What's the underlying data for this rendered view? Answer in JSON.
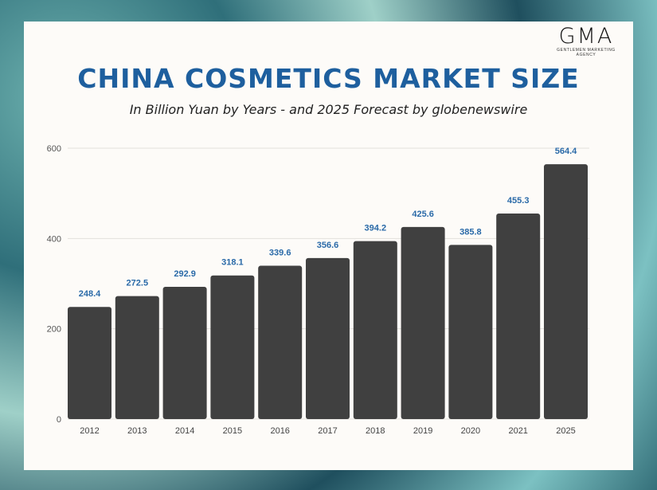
{
  "logo": {
    "text": "GMA",
    "tagline": "GENTLEMEN MARKETING AGENCY",
    "accent": "#d9262c"
  },
  "chart_data": {
    "type": "bar",
    "title": "CHINA COSMETICS MARKET SIZE",
    "subtitle": "In Billion Yuan  by Years - and 2025 Forecast by globenewswire",
    "categories": [
      "2012",
      "2013",
      "2014",
      "2015",
      "2016",
      "2017",
      "2018",
      "2019",
      "2020",
      "2021",
      "2025"
    ],
    "values": [
      248.4,
      272.5,
      292.9,
      318.1,
      339.6,
      356.6,
      394.2,
      425.6,
      385.8,
      455.3,
      564.4
    ],
    "data_labels": [
      "248.4",
      "272.5",
      "292.9",
      "318.1",
      "339.6",
      "356.6",
      "394.2",
      "425.6",
      "385.8",
      "455.3",
      "564.4"
    ],
    "yticks": [
      "0",
      "200",
      "400",
      "600"
    ],
    "ylim": [
      0,
      600
    ],
    "grid": true,
    "bar_color": "#404040",
    "label_color": "#2a6aa8",
    "title_color": "#1e5f9e"
  }
}
